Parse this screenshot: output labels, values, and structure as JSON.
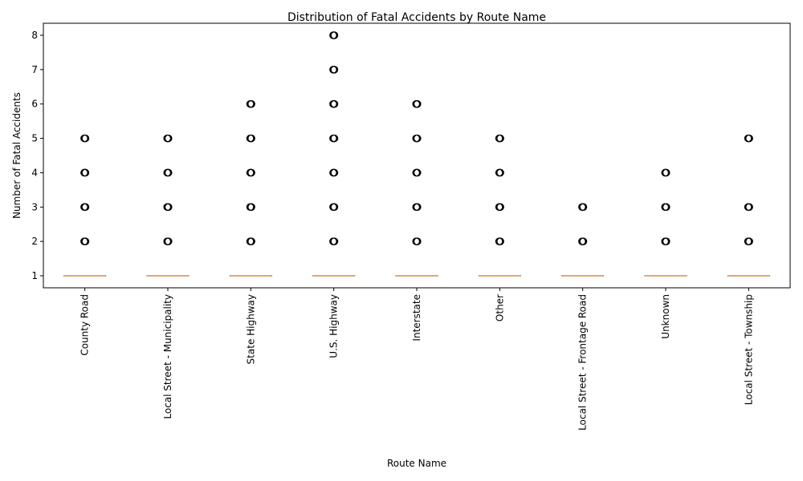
{
  "chart_data": {
    "type": "box",
    "title": "Distribution of Fatal Accidents by Route Name",
    "xlabel": "Route Name",
    "ylabel": "Number of Fatal Accidents",
    "ylim": [
      0.65,
      8.35
    ],
    "yticks": [
      1,
      2,
      3,
      4,
      5,
      6,
      7,
      8
    ],
    "grid": false,
    "categories": [
      "County Road",
      "Local Street - Municipality",
      "State Highway",
      "U.S. Highway",
      "Interstate",
      "Other",
      "Local Street - Frontage Road",
      "Unknown",
      "Local Street - Township"
    ],
    "boxes": [
      {
        "q1": 1,
        "median": 1,
        "q3": 1,
        "whisker_low": 1,
        "whisker_high": 1,
        "outliers": [
          2,
          3,
          4,
          5
        ]
      },
      {
        "q1": 1,
        "median": 1,
        "q3": 1,
        "whisker_low": 1,
        "whisker_high": 1,
        "outliers": [
          2,
          3,
          4,
          5
        ]
      },
      {
        "q1": 1,
        "median": 1,
        "q3": 1,
        "whisker_low": 1,
        "whisker_high": 1,
        "outliers": [
          2,
          3,
          4,
          5,
          6
        ]
      },
      {
        "q1": 1,
        "median": 1,
        "q3": 1,
        "whisker_low": 1,
        "whisker_high": 1,
        "outliers": [
          2,
          3,
          4,
          5,
          6,
          7,
          8
        ]
      },
      {
        "q1": 1,
        "median": 1,
        "q3": 1,
        "whisker_low": 1,
        "whisker_high": 1,
        "outliers": [
          2,
          3,
          4,
          5,
          6
        ]
      },
      {
        "q1": 1,
        "median": 1,
        "q3": 1,
        "whisker_low": 1,
        "whisker_high": 1,
        "outliers": [
          2,
          3,
          4,
          5
        ]
      },
      {
        "q1": 1,
        "median": 1,
        "q3": 1,
        "whisker_low": 1,
        "whisker_high": 1,
        "outliers": [
          2,
          3
        ]
      },
      {
        "q1": 1,
        "median": 1,
        "q3": 1,
        "whisker_low": 1,
        "whisker_high": 1,
        "outliers": [
          2,
          3,
          4
        ]
      },
      {
        "q1": 1,
        "median": 1,
        "q3": 1,
        "whisker_low": 1,
        "whisker_high": 1,
        "outliers": [
          2,
          3,
          5
        ]
      }
    ],
    "colors": {
      "median": "#e08a3c",
      "box": "#000000",
      "outlier": "#000000"
    }
  }
}
